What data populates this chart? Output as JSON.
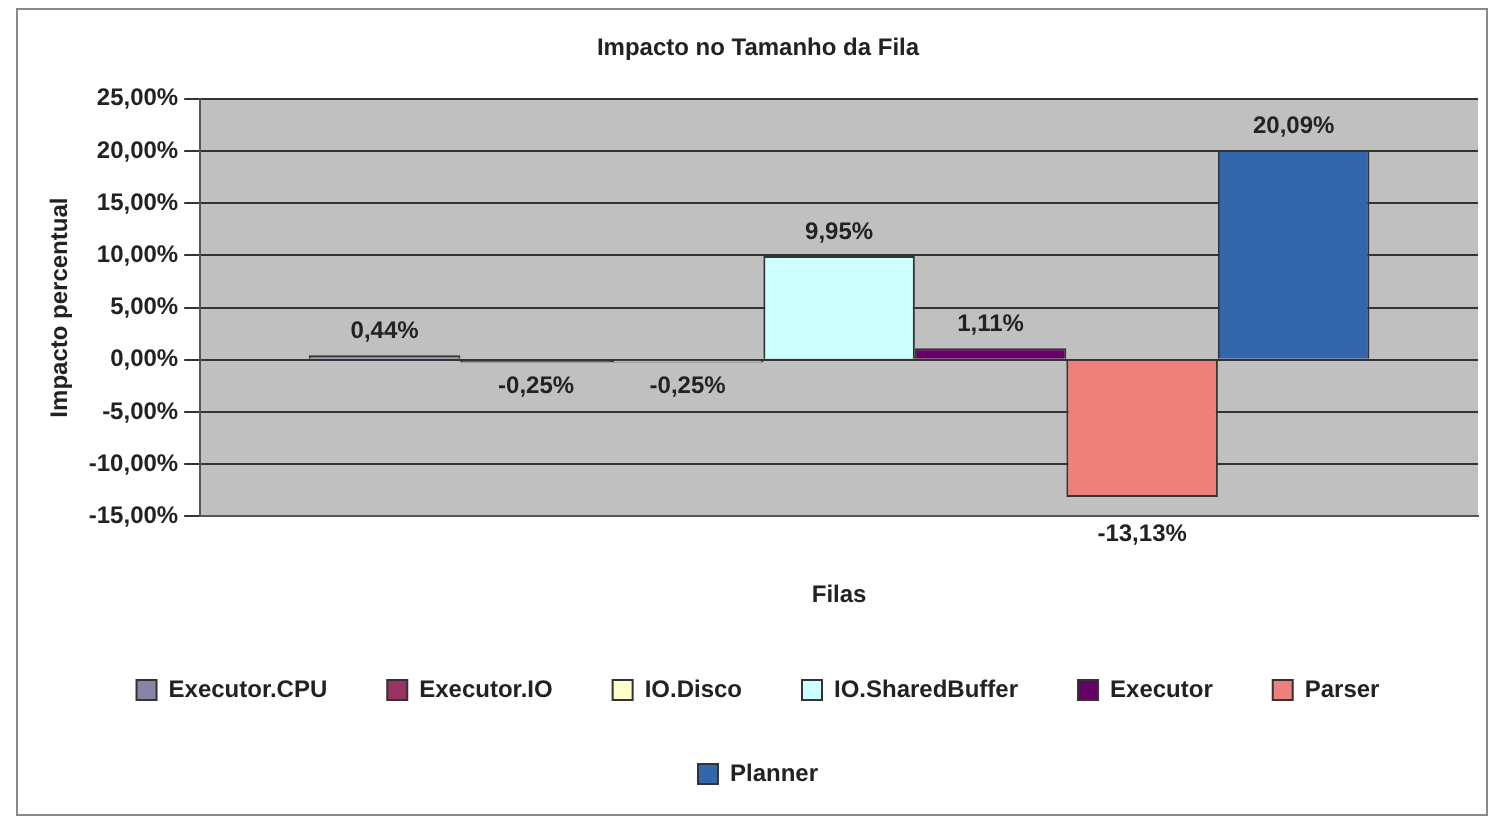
{
  "chart_data": {
    "type": "bar",
    "title": "Impacto no Tamanho da Fila",
    "xlabel": "Filas",
    "ylabel": "Impacto percentual",
    "categories": [
      null
    ],
    "series": [
      {
        "name": "Executor.CPU",
        "color": "#8585a6",
        "values": [
          0.44
        ],
        "value_labels": [
          "0,44%"
        ]
      },
      {
        "name": "Executor.IO",
        "color": "#993366",
        "values": [
          -0.25
        ],
        "value_labels": [
          "-0,25%"
        ]
      },
      {
        "name": "IO.Disco",
        "color": "#ffffcc",
        "values": [
          -0.25
        ],
        "value_labels": [
          "-0,25%"
        ]
      },
      {
        "name": "IO.SharedBuffer",
        "color": "#ccffff",
        "values": [
          9.95
        ],
        "value_labels": [
          "9,95%"
        ]
      },
      {
        "name": "Executor",
        "color": "#660066",
        "values": [
          1.11
        ],
        "value_labels": [
          "1,11%"
        ]
      },
      {
        "name": "Parser",
        "color": "#ee7f7a",
        "values": [
          -13.13
        ],
        "value_labels": [
          "-13,13%"
        ]
      },
      {
        "name": "Planner",
        "color": "#3366aa",
        "values": [
          20.09
        ],
        "value_labels": [
          "20,09%"
        ]
      }
    ],
    "ylim": [
      -15,
      25
    ],
    "yticks": [
      {
        "value": -15,
        "label": "-15,00%"
      },
      {
        "value": -10,
        "label": "-10,00%"
      },
      {
        "value": -5,
        "label": "-5,00%"
      },
      {
        "value": 0,
        "label": "0,00%"
      },
      {
        "value": 5,
        "label": "5,00%"
      },
      {
        "value": 10,
        "label": "10,00%"
      },
      {
        "value": 15,
        "label": "15,00%"
      },
      {
        "value": 20,
        "label": "20,00%"
      },
      {
        "value": 25,
        "label": "25,00%"
      }
    ],
    "grid": "y",
    "legend": "bottom"
  }
}
